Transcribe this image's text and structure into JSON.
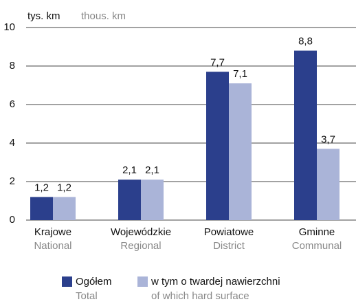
{
  "chart_data": {
    "type": "bar",
    "unit_label": "tys. km",
    "unit_label_en": "thous. km",
    "categories": [
      "Krajowe",
      "Wojewódzkie",
      "Powiatowe",
      "Gminne"
    ],
    "categories_en": [
      "National",
      "Regional",
      "District",
      "Communal"
    ],
    "series": [
      {
        "name": "Ogółem",
        "name_en": "Total",
        "color": "#2b3f8c",
        "values": [
          1.2,
          2.1,
          7.7,
          8.8
        ],
        "value_labels": [
          "1,2",
          "2,1",
          "7,7",
          "8,8"
        ]
      },
      {
        "name": "w tym o twardej nawierzchni",
        "name_en": "of which hard surface",
        "color": "#aab4d8",
        "values": [
          1.2,
          2.1,
          7.1,
          3.7
        ],
        "value_labels": [
          "1,2",
          "2,1",
          "7,1",
          "3,7"
        ]
      }
    ],
    "ylim": [
      0,
      10
    ],
    "yticks": [
      0,
      2,
      4,
      6,
      8,
      10
    ],
    "grid": true
  }
}
